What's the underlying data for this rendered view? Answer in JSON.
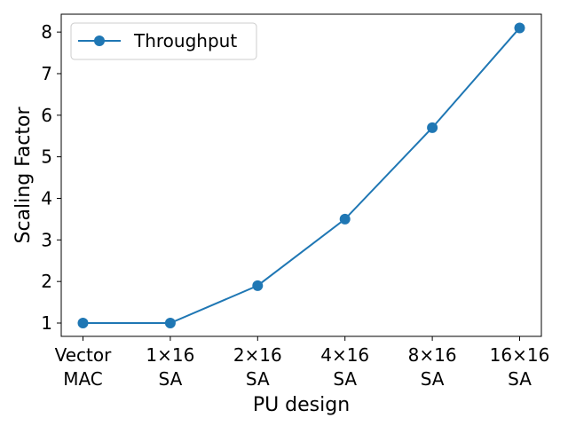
{
  "chart_data": {
    "type": "line",
    "categories": [
      "Vector\nMAC",
      "1×16\nSA",
      "2×16\nSA",
      "4×16\nSA",
      "8×16\nSA",
      "16×16\nSA"
    ],
    "series": [
      {
        "name": "Throughput",
        "values": [
          1.0,
          1.0,
          1.9,
          3.5,
          5.7,
          8.1
        ],
        "color": "#1f77b4",
        "marker": "circle"
      }
    ],
    "xlabel": "PU design",
    "ylabel": "Scaling Factor",
    "title": "",
    "ylim": [
      0.68,
      8.43
    ],
    "yticks": [
      1,
      2,
      3,
      4,
      5,
      6,
      7,
      8
    ],
    "grid": false,
    "legend_position": "top-left"
  }
}
